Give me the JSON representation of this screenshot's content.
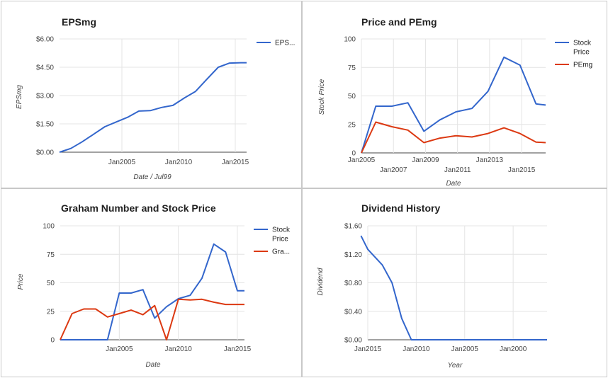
{
  "colors": {
    "blue": "#3366cc",
    "red": "#dc3912"
  },
  "chart_data": [
    {
      "type": "line",
      "title": "EPSmg",
      "xlabel": "Date / Jul99",
      "ylabel": "EPSmg",
      "xlim": [
        1999.5,
        2016.0
      ],
      "ylim": [
        0,
        6
      ],
      "y_ticks": [
        0,
        1.5,
        3.0,
        4.5,
        6.0
      ],
      "y_tick_labels": [
        "$0.00",
        "$1.50",
        "$3.00",
        "$4.50",
        "$6.00"
      ],
      "x_ticks": [
        2005,
        2010,
        2015
      ],
      "x_tick_labels": [
        "Jan2005",
        "Jan2010",
        "Jan2015"
      ],
      "legend": "right",
      "series": [
        {
          "name": "EPS...",
          "color": "#3366cc",
          "x": [
            1999.5,
            2000.5,
            2001.5,
            2002.5,
            2003.5,
            2004.5,
            2005.5,
            2006.5,
            2007.5,
            2008.5,
            2009.5,
            2010.5,
            2011.5,
            2012.5,
            2013.5,
            2014.5,
            2015.5,
            2016.0
          ],
          "y": [
            0.0,
            0.2,
            0.55,
            0.95,
            1.35,
            1.6,
            1.85,
            2.18,
            2.2,
            2.37,
            2.48,
            2.87,
            3.22,
            3.87,
            4.5,
            4.72,
            4.74,
            4.74
          ]
        }
      ]
    },
    {
      "type": "line",
      "title": "Price and PEmg",
      "xlabel": "Date",
      "ylabel": "Stock Price",
      "xlim": [
        2005,
        2016.5
      ],
      "ylim": [
        0,
        100
      ],
      "y_ticks": [
        0,
        25,
        50,
        75,
        100
      ],
      "y_tick_labels": [
        "0",
        "25",
        "50",
        "75",
        "100"
      ],
      "x_ticks": [
        2005,
        2007,
        2009,
        2011,
        2013,
        2015
      ],
      "x_tick_labels": [
        "Jan2005",
        "Jan2007",
        "Jan2009",
        "Jan2011",
        "Jan2013",
        "Jan2015"
      ],
      "legend": "right",
      "series": [
        {
          "name": "Stock Price",
          "color": "#3366cc",
          "x": [
            2005,
            2005.9,
            2006.9,
            2007.9,
            2008.9,
            2009.9,
            2010.9,
            2011.9,
            2012.9,
            2013.9,
            2014.9,
            2015.9,
            2016.5
          ],
          "y": [
            0,
            41,
            41,
            44,
            19,
            29,
            36,
            39,
            54,
            84,
            77,
            43,
            42
          ]
        },
        {
          "name": "PEmg",
          "color": "#dc3912",
          "x": [
            2005,
            2005.9,
            2006.9,
            2007.9,
            2008.9,
            2009.9,
            2010.9,
            2011.9,
            2012.9,
            2013.9,
            2014.9,
            2015.9,
            2016.5
          ],
          "y": [
            0,
            27,
            23,
            20,
            9,
            13,
            15,
            14,
            17,
            22,
            17,
            9.5,
            9
          ]
        }
      ]
    },
    {
      "type": "line",
      "title": "Graham Number and Stock Price",
      "xlabel": "Date",
      "ylabel": "Price",
      "xlim": [
        2000.0,
        2015.6
      ],
      "ylim": [
        0,
        100
      ],
      "y_ticks": [
        0,
        25,
        50,
        75,
        100
      ],
      "y_tick_labels": [
        "0",
        "25",
        "50",
        "75",
        "100"
      ],
      "x_ticks": [
        2005,
        2010,
        2015
      ],
      "x_tick_labels": [
        "Jan2005",
        "Jan2010",
        "Jan2015"
      ],
      "legend": "right",
      "series": [
        {
          "name": "Stock Price",
          "color": "#3366cc",
          "x": [
            2000.0,
            2001.0,
            2002.0,
            2003.0,
            2004.0,
            2005.0,
            2006.0,
            2007.0,
            2008.0,
            2009.0,
            2010.0,
            2011.0,
            2012.0,
            2013.0,
            2014.0,
            2015.0,
            2015.6
          ],
          "y": [
            0,
            0,
            0,
            0,
            0,
            41,
            41,
            44,
            19,
            29,
            36,
            39,
            54,
            84,
            77,
            43,
            43
          ]
        },
        {
          "name": "Gra...",
          "color": "#dc3912",
          "x": [
            2000.0,
            2001.0,
            2002.0,
            2003.0,
            2004.0,
            2005.0,
            2006.0,
            2007.0,
            2008.0,
            2009.0,
            2010.0,
            2011.0,
            2012.0,
            2013.0,
            2014.0,
            2015.0,
            2015.6
          ],
          "y": [
            0,
            23,
            27,
            27,
            20,
            23,
            26,
            22,
            30,
            0,
            35.5,
            35,
            35.5,
            33,
            31,
            31,
            31
          ]
        }
      ]
    },
    {
      "type": "line",
      "title": "Dividend History",
      "xlabel": "Year",
      "ylabel": "Dividend",
      "x_reversed": true,
      "xlim": [
        2015.0,
        1996.5
      ],
      "ylim": [
        0,
        1.6
      ],
      "y_ticks": [
        0,
        0.4,
        0.8,
        1.2,
        1.6
      ],
      "y_tick_labels": [
        "$0.00",
        "$0.40",
        "$0.80",
        "$1.20",
        "$1.60"
      ],
      "x_ticks": [
        2015,
        2010,
        2005,
        2000
      ],
      "x_tick_labels": [
        "Jan2015",
        "Jan2010",
        "Jan2005",
        "Jan2000"
      ],
      "legend": "none",
      "series": [
        {
          "name": "",
          "color": "#3366cc",
          "x": [
            2015.7,
            2015.0,
            2013.5,
            2012.5,
            2011.5,
            2010.5,
            2010.0,
            2005.0,
            2000.0,
            1996.5
          ],
          "y": [
            1.46,
            1.27,
            1.05,
            0.8,
            0.3,
            0.0,
            0.0,
            0.0,
            0.0,
            0.0
          ]
        }
      ]
    }
  ]
}
